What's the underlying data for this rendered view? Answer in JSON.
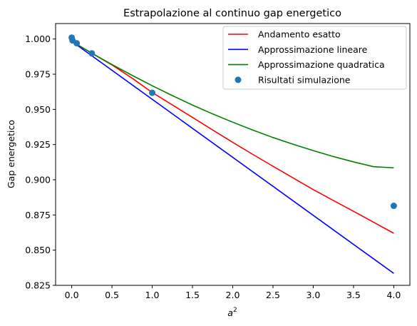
{
  "chart_data": {
    "type": "line",
    "title": "Estrapolazione al continuo gap energetico",
    "xlabel_base": "a",
    "xlabel_sup": "2",
    "ylabel": "Gap energetico",
    "xlim": [
      -0.2,
      4.2
    ],
    "ylim": [
      0.825,
      1.011
    ],
    "xticks": [
      0.0,
      0.5,
      1.0,
      1.5,
      2.0,
      2.5,
      3.0,
      3.5,
      4.0
    ],
    "xtick_labels": [
      "0.0",
      "0.5",
      "1.0",
      "1.5",
      "2.0",
      "2.5",
      "3.0",
      "3.5",
      "4.0"
    ],
    "yticks": [
      0.825,
      0.85,
      0.875,
      0.9,
      0.925,
      0.95,
      0.975,
      1.0
    ],
    "ytick_labels": [
      "0.825",
      "0.850",
      "0.875",
      "0.900",
      "0.925",
      "0.950",
      "0.975",
      "1.000"
    ],
    "legend_position": "top-right",
    "series": [
      {
        "name": "Andamento esatto",
        "kind": "line",
        "color": "#ff0000",
        "x": [
          0.0,
          0.25,
          0.5,
          0.75,
          1.0,
          1.25,
          1.5,
          1.75,
          2.0,
          2.25,
          2.5,
          2.75,
          3.0,
          3.25,
          3.5,
          3.75,
          4.0
        ],
        "y": [
          0.9984,
          0.9899,
          0.9816,
          0.9722,
          0.962,
          0.9532,
          0.9443,
          0.9354,
          0.9266,
          0.918,
          0.9096,
          0.9013,
          0.893,
          0.8853,
          0.8776,
          0.8698,
          0.862
        ]
      },
      {
        "name": "Approssimazione lineare",
        "kind": "line",
        "color": "#0000ff",
        "x": [
          0.0,
          4.0
        ],
        "y": [
          0.9984,
          0.8335
        ]
      },
      {
        "name": "Approssimazione quadratica",
        "kind": "line",
        "color": "#008000",
        "x": [
          0.0,
          0.25,
          0.5,
          0.75,
          1.0,
          1.25,
          1.5,
          1.75,
          2.0,
          2.25,
          2.5,
          2.75,
          3.0,
          3.25,
          3.5,
          3.75,
          4.0
        ],
        "y": [
          0.9984,
          0.9899,
          0.9819,
          0.9742,
          0.9668,
          0.9598,
          0.9531,
          0.9468,
          0.9409,
          0.9353,
          0.93,
          0.9252,
          0.9207,
          0.9165,
          0.9127,
          0.9093,
          0.9085
        ]
      },
      {
        "name": "Risultati simulazione",
        "kind": "scatter",
        "color": "#1f77b4",
        "x": [
          0.0,
          0.01,
          0.0625,
          0.25,
          1.0,
          4.0
        ],
        "y": [
          1.001,
          0.999,
          0.997,
          0.9898,
          0.9618,
          0.8815
        ]
      }
    ]
  }
}
